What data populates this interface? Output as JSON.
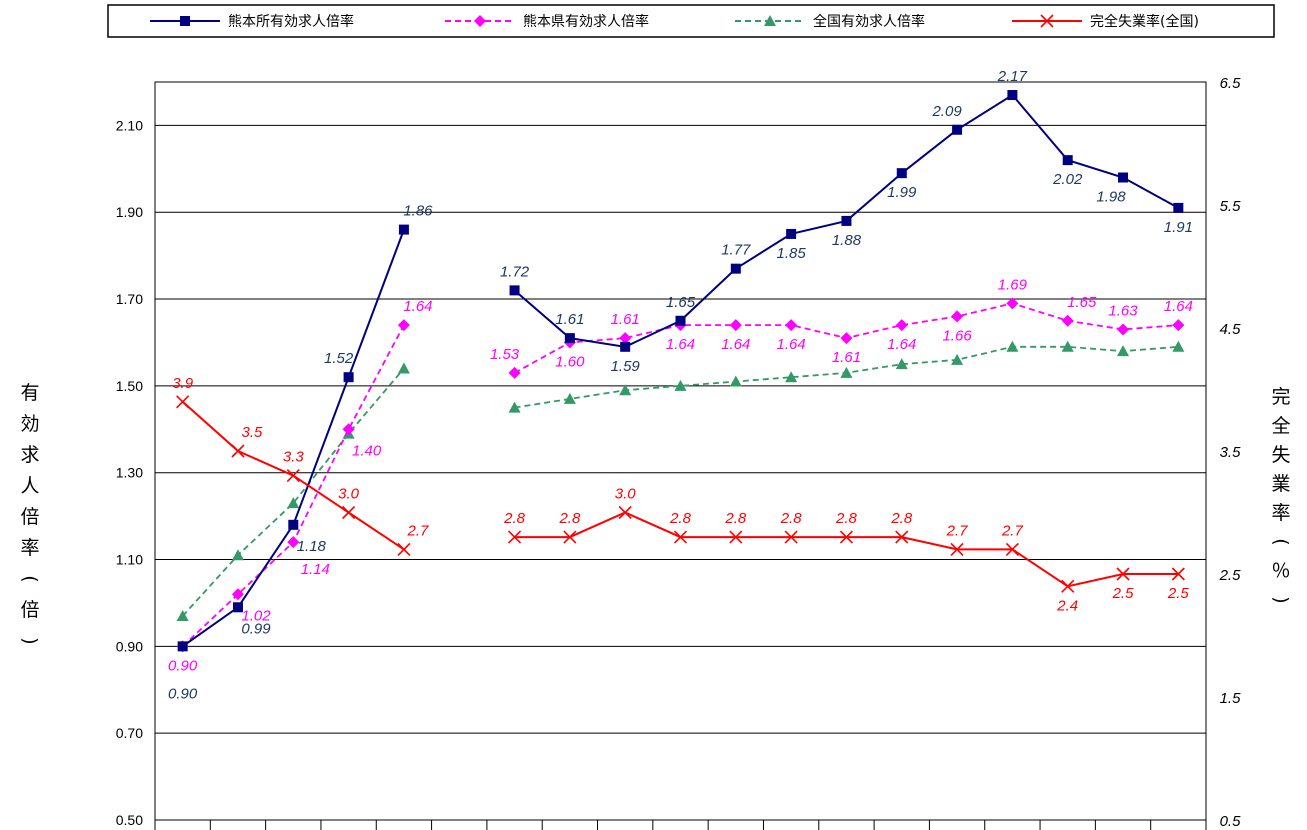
{
  "chart_data": {
    "type": "line",
    "categories": [
      "",
      "",
      "",
      "",
      "",
      "",
      "",
      "",
      "",
      "",
      "",
      "",
      "",
      "",
      "",
      "",
      "",
      "",
      ""
    ],
    "ylabel": "有効求人倍率（倍）",
    "y2label": "完全失業率（％）",
    "ylim": [
      0.5,
      2.2
    ],
    "y2lim": [
      0.5,
      6.5
    ],
    "yticks": [
      "0.50",
      "0.70",
      "0.90",
      "1.10",
      "1.30",
      "1.50",
      "1.70",
      "1.90",
      "2.10"
    ],
    "y2ticks": [
      "0.5",
      "1.5",
      "2.5",
      "3.5",
      "4.5",
      "5.5",
      "6.5"
    ],
    "grid": true,
    "legend_position": "top",
    "series": [
      {
        "name": "熊本所有効求人倍率",
        "axis": "left",
        "color": "#000080",
        "dash": "solid",
        "marker": "square",
        "values": [
          0.9,
          0.99,
          1.18,
          1.52,
          1.86,
          null,
          1.72,
          1.61,
          1.59,
          1.65,
          1.77,
          1.85,
          1.88,
          1.99,
          2.09,
          2.17,
          2.02,
          1.98,
          1.91
        ],
        "labels": [
          "0.90",
          "0.99",
          "1.18",
          "1.52",
          "1.86",
          "",
          "1.72",
          "1.61",
          "1.59",
          "1.65",
          "1.77",
          "1.85",
          "1.88",
          "1.99",
          "2.09",
          "2.17",
          "2.02",
          "1.98",
          "1.91"
        ],
        "label_pos": [
          "b2",
          "br",
          "br",
          "ul",
          "ur",
          "",
          "a",
          "a",
          "b",
          "a",
          "a",
          "b",
          "b",
          "b",
          "ul",
          "a",
          "b",
          "bl",
          "b"
        ]
      },
      {
        "name": "熊本県有効求人倍率",
        "axis": "left",
        "color": "#ff00ff",
        "dash": "dashed",
        "marker": "diamond",
        "values": [
          0.9,
          1.02,
          1.14,
          1.4,
          1.64,
          null,
          1.53,
          1.6,
          1.61,
          1.64,
          1.64,
          1.64,
          1.61,
          1.64,
          1.66,
          1.69,
          1.65,
          1.63,
          1.64
        ],
        "labels": [
          "0.90",
          "1.02",
          "1.14",
          "1.40",
          "1.64",
          "",
          "1.53",
          "1.60",
          "1.61",
          "1.64",
          "1.64",
          "1.64",
          "1.61",
          "1.64",
          "1.66",
          "1.69",
          "1.65",
          "1.63",
          "1.64"
        ],
        "label_pos": [
          "b",
          "br",
          "br2",
          "br",
          "ur",
          "",
          "ul",
          "b",
          "a",
          "b",
          "b",
          "b",
          "b",
          "b",
          "b",
          "a",
          "ur",
          "a",
          "a"
        ]
      },
      {
        "name": "全国有効求人倍率",
        "axis": "left",
        "color": "#339966",
        "dash": "dashed",
        "marker": "triangle",
        "values": [
          0.97,
          1.11,
          1.23,
          1.39,
          1.54,
          null,
          1.45,
          1.47,
          1.49,
          1.5,
          1.51,
          1.52,
          1.53,
          1.55,
          1.56,
          1.59,
          1.59,
          1.58,
          1.59
        ],
        "labels": [],
        "label_pos": []
      },
      {
        "name": "完全失業率(全国)",
        "axis": "right",
        "color": "#ff0000",
        "dash": "solid",
        "marker": "x",
        "values": [
          3.9,
          3.5,
          3.3,
          3.0,
          2.7,
          null,
          2.8,
          2.8,
          3.0,
          2.8,
          2.8,
          2.8,
          2.8,
          2.8,
          2.7,
          2.7,
          2.4,
          2.5,
          2.5
        ],
        "labels": [
          "3.9",
          "3.5",
          "3.3",
          "3.0",
          "2.7",
          "",
          "2.8",
          "2.8",
          "3.0",
          "2.8",
          "2.8",
          "2.8",
          "2.8",
          "2.8",
          "2.7",
          "2.7",
          "2.4",
          "2.5",
          "2.5"
        ],
        "label_pos": [
          "a",
          "ur",
          "a",
          "a",
          "ur",
          "",
          "a",
          "a",
          "a",
          "a",
          "a",
          "a",
          "a",
          "a",
          "a",
          "a",
          "b",
          "b",
          "b"
        ]
      }
    ]
  }
}
